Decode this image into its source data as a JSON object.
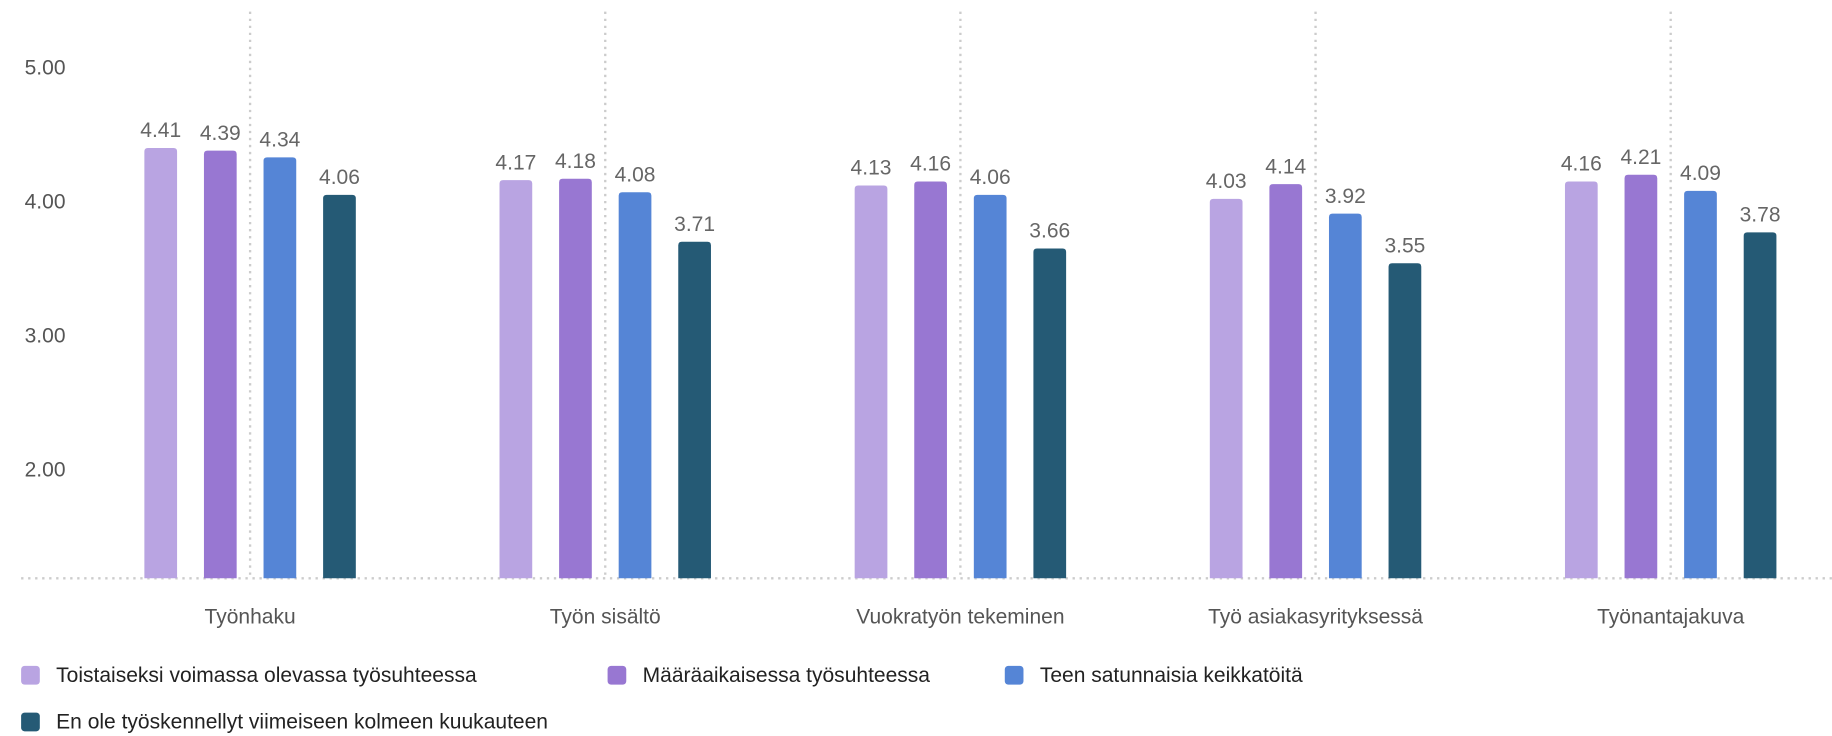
{
  "chart_data": {
    "type": "bar",
    "categories": [
      "Työnhaku",
      "Työn sisältö",
      "Vuokratyön tekeminen",
      "Työ asiakasyrityksessä",
      "Työnantajakuva"
    ],
    "series": [
      {
        "name": "Toistaiseksi voimassa olevassa työsuhteessa",
        "color": "#b9a4e2",
        "values": [
          4.41,
          4.17,
          4.13,
          4.03,
          4.16
        ]
      },
      {
        "name": "Määräaikaisessa työsuhteessa",
        "color": "#9877d2",
        "values": [
          4.39,
          4.18,
          4.16,
          4.14,
          4.21
        ]
      },
      {
        "name": "Teen satunnaisia keikkatöitä",
        "color": "#5585d6",
        "values": [
          4.34,
          4.08,
          4.06,
          3.92,
          4.09
        ]
      },
      {
        "name": "En ole työskennellyt viimeiseen kolmeen kuukauteen",
        "color": "#255a75",
        "values": [
          4.06,
          3.71,
          3.66,
          3.55,
          3.78
        ]
      }
    ],
    "ylim": [
      1.2,
      5.2
    ],
    "yticks": [
      {
        "value": 2,
        "label": "2.00"
      },
      {
        "value": 3,
        "label": "3.00"
      },
      {
        "value": 4,
        "label": "4.00"
      },
      {
        "value": 5,
        "label": "5.00"
      }
    ]
  }
}
